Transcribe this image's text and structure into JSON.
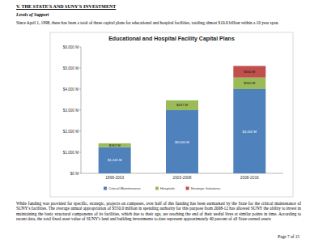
{
  "document": {
    "heading": "V. THE STATE'S AND SUNY'S INVESTMENT",
    "subheading": "Levels of Support",
    "intro": "Since April 1, 1998, there has been a total of three capital plans for educational and hospital facilities, totaling almost $10.0 billion within a 10 year span.",
    "body": "While funding was provided for specific, strategic, projects on campuses, over half of this funding has been earmarked by the State for the critical maintenance of SUNY's facilities. The average annual appropriation of $550.0 million in spending authority for this purpose from 2008-12 has allowed SUNY the ability to invest in maintaining the basic structural components of its facilities, which due to their age, are reaching the end of their useful lives at similar points in time. According to recent data, the total fixed asset value of SUNY's land and building investments to date represent approximately 40 percent of all State-owned assets",
    "footer": "Page 7 of 15"
  },
  "chart_data": {
    "type": "bar",
    "stacked": true,
    "title": "Educational and Hospital Facility Capital Plans",
    "categories": [
      "1998-2003",
      "2003-2008",
      "2008-2016"
    ],
    "series": [
      {
        "name": "Critical Maintenance",
        "color": "#4f81bd",
        "values": [
          1245,
          3000,
          4000
        ],
        "value_labels": [
          "$1,245 M",
          "$3,000 M",
          "$4,000 M"
        ]
      },
      {
        "name": "Hospitals",
        "color": "#9bbb59",
        "values": [
          182,
          467,
          550
        ],
        "value_labels": [
          "$182 M",
          "$467 M",
          "$550 M"
        ]
      },
      {
        "name": "Strategic Initiatives",
        "color": "#c0504d",
        "values": [
          null,
          null,
          550
        ],
        "value_labels": [
          null,
          null,
          "$550 M"
        ]
      }
    ],
    "ylim": [
      0,
      6000
    ],
    "yticks": [
      {
        "value": 0,
        "label": "$0 M"
      },
      {
        "value": 1000,
        "label": "$1,000 M"
      },
      {
        "value": 2000,
        "label": "$2,000 M"
      },
      {
        "value": 3000,
        "label": "$3,000 M"
      },
      {
        "value": 4000,
        "label": "$4,000 M"
      },
      {
        "value": 5000,
        "label": "$5,000 M"
      },
      {
        "value": 6000,
        "label": "$6,000 M"
      }
    ],
    "grid": false,
    "legend": "bottom",
    "data_labels": true
  }
}
